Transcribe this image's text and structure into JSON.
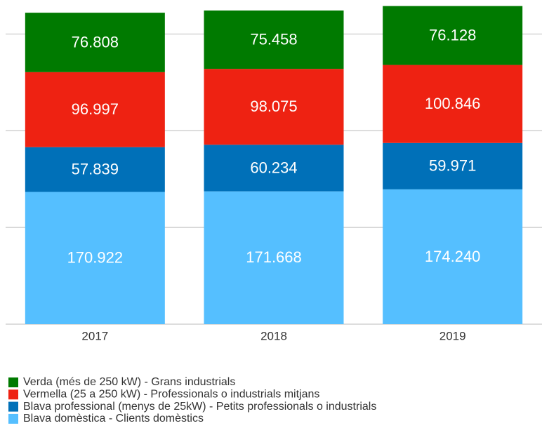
{
  "chart_data": {
    "type": "stacked_bar",
    "categories": [
      "2017",
      "2018",
      "2019"
    ],
    "series": [
      {
        "name": "Blava domèstica - Clients domèstics",
        "color": "#55bfff",
        "values": [
          170922,
          171668,
          174240
        ],
        "value_labels": [
          "170.922",
          "171.668",
          "174.240"
        ]
      },
      {
        "name": "Blava professional (menys de 25kW) - Petits professionals o industrials",
        "color": "#0070b8",
        "values": [
          57839,
          60234,
          59971
        ],
        "value_labels": [
          "57.839",
          "60.234",
          "59.971"
        ]
      },
      {
        "name": "Vermella (25 a 250 kW) - Professionals o industrials mitjans",
        "color": "#ee2212",
        "values": [
          96997,
          98075,
          100846
        ],
        "value_labels": [
          "96.997",
          "98.075",
          "100.846"
        ]
      },
      {
        "name": "Verda (més de 250 kW) - Grans industrials",
        "color": "#007a00",
        "values": [
          76808,
          75458,
          76128
        ],
        "value_labels": [
          "76.808",
          "75.458",
          "76.128"
        ]
      }
    ],
    "ylim": [
      0,
      419000
    ],
    "yticks": [
      0,
      125000,
      250000,
      375000
    ],
    "grid": true,
    "legend": "bottom"
  }
}
